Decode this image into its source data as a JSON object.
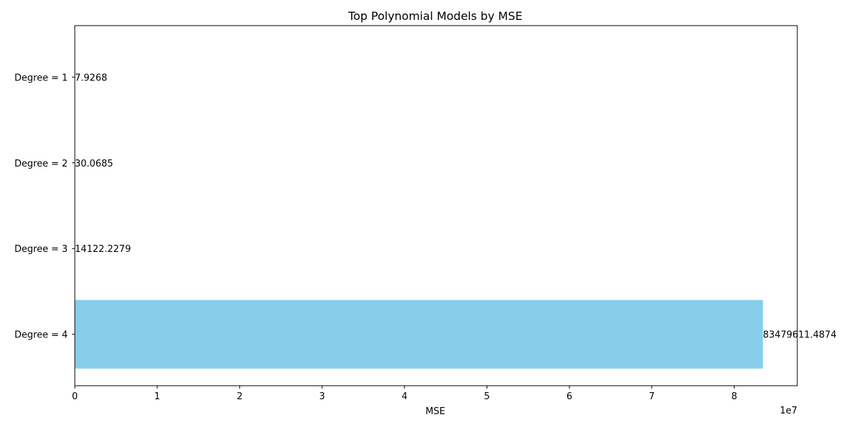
{
  "chart_data": {
    "type": "bar",
    "orientation": "horizontal",
    "title": "Top Polynomial Models by MSE",
    "xlabel": "MSE",
    "ylabel": "",
    "x_scale_note": "1e7",
    "x_tick_labels": [
      "0",
      "1",
      "2",
      "3",
      "4",
      "5",
      "6",
      "7",
      "8"
    ],
    "x_tick_values": [
      0,
      10000000,
      20000000,
      30000000,
      40000000,
      50000000,
      60000000,
      70000000,
      80000000
    ],
    "xlim": [
      0,
      87653592
    ],
    "categories": [
      "Degree = 1",
      "Degree = 2",
      "Degree = 3",
      "Degree = 4"
    ],
    "values": [
      7.9268,
      30.0685,
      14122.2279,
      83479611.4874
    ],
    "data_labels": [
      "7.9268",
      "30.0685",
      "14122.2279",
      "83479611.4874"
    ],
    "bar_color": "#87ceeb",
    "grid": false,
    "legend": "none"
  }
}
